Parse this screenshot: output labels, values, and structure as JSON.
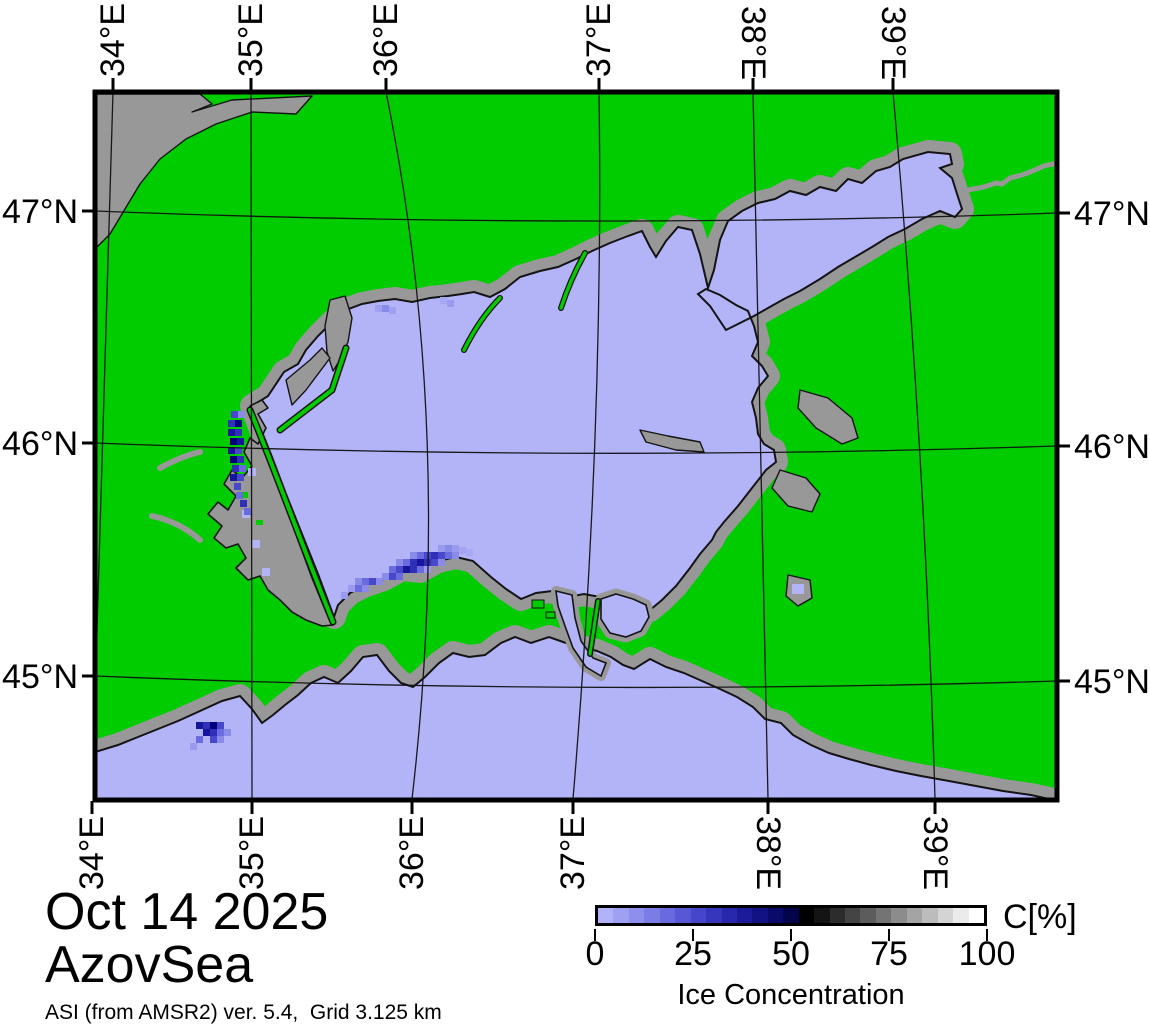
{
  "title_block": {
    "date": "Oct 14 2025",
    "region": "AzovSea",
    "product": "ASI (from AMSR2) ver. 5.4,  Grid 3.125 km"
  },
  "axes": {
    "top": [
      "34°E",
      "35°E",
      "36°E",
      "37°E",
      "38°E",
      "39°E"
    ],
    "bottom": [
      "34°E",
      "35°E",
      "36°E",
      "37°E",
      "38°E",
      "39°E"
    ],
    "left": [
      "47°N",
      "46°N",
      "45°N"
    ],
    "right": [
      "47°N",
      "46°N",
      "45°N"
    ]
  },
  "colorbar": {
    "unit": "C[%]",
    "label": "Ice Concentration",
    "ticks": [
      "0",
      "25",
      "50",
      "75",
      "100"
    ],
    "cells": [
      "#b2b2f8",
      "#a0a0f2",
      "#8e8eec",
      "#7c7ce6",
      "#6a6ae0",
      "#5858d6",
      "#4646ca",
      "#3636bc",
      "#2828ac",
      "#1c1c9a",
      "#121284",
      "#0a0a6a",
      "#04044a",
      "#000000",
      "#141414",
      "#2c2c2c",
      "#444444",
      "#5c5c5c",
      "#747474",
      "#8c8c8c",
      "#a4a4a4",
      "#bcbcbc",
      "#d4d4d4",
      "#ebebeb",
      "#ffffff"
    ]
  },
  "map_colors": {
    "land": "#00cc00",
    "open_water": "#b3b3f8",
    "coastal_mask": "#989898",
    "ice_shades": [
      "#9a9aee",
      "#8a8ae8",
      "#6b6be0",
      "#4848cc",
      "#2f2fb8",
      "#16169c",
      "#00007d"
    ]
  }
}
